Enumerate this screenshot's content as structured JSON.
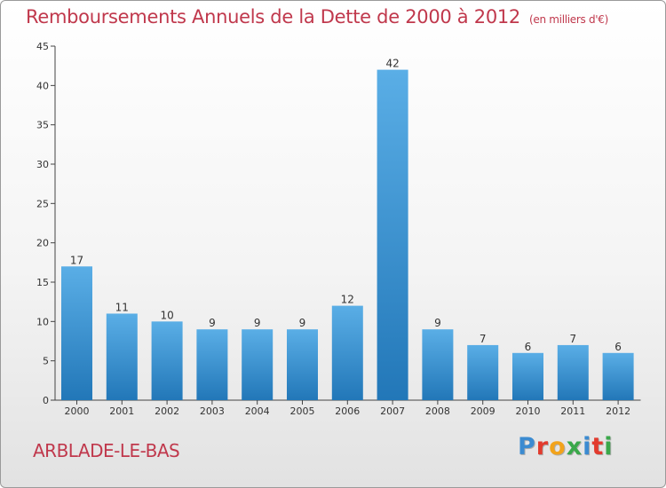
{
  "header": {
    "title": "Remboursements Annuels de la Dette de 2000 à 2012",
    "unit": "(en milliers d'€)"
  },
  "footer": {
    "commune": "ARBLADE-LE-BAS",
    "brand": "Proxiti"
  },
  "colors": {
    "title": "#c0384c",
    "bar_top": "#5aaee6",
    "bar_bottom": "#2277b8",
    "brand_letters": [
      "#3b8bd1",
      "#e23b2e",
      "#f2a31b",
      "#3aa84a",
      "#3b8bd1",
      "#e23b2e",
      "#3aa84a"
    ]
  },
  "chart_data": {
    "type": "bar",
    "title": "Remboursements Annuels de la Dette de 2000 à 2012",
    "xlabel": "",
    "ylabel": "",
    "categories": [
      "2000",
      "2001",
      "2002",
      "2003",
      "2004",
      "2005",
      "2006",
      "2007",
      "2008",
      "2009",
      "2010",
      "2011",
      "2012"
    ],
    "values": [
      17,
      11,
      10,
      9,
      9,
      9,
      12,
      42,
      9,
      7,
      6,
      7,
      6
    ],
    "ylim": [
      0,
      45
    ],
    "yticks": [
      0,
      5,
      10,
      15,
      20,
      25,
      30,
      35,
      40,
      45
    ],
    "grid": false,
    "data_labels": true
  }
}
